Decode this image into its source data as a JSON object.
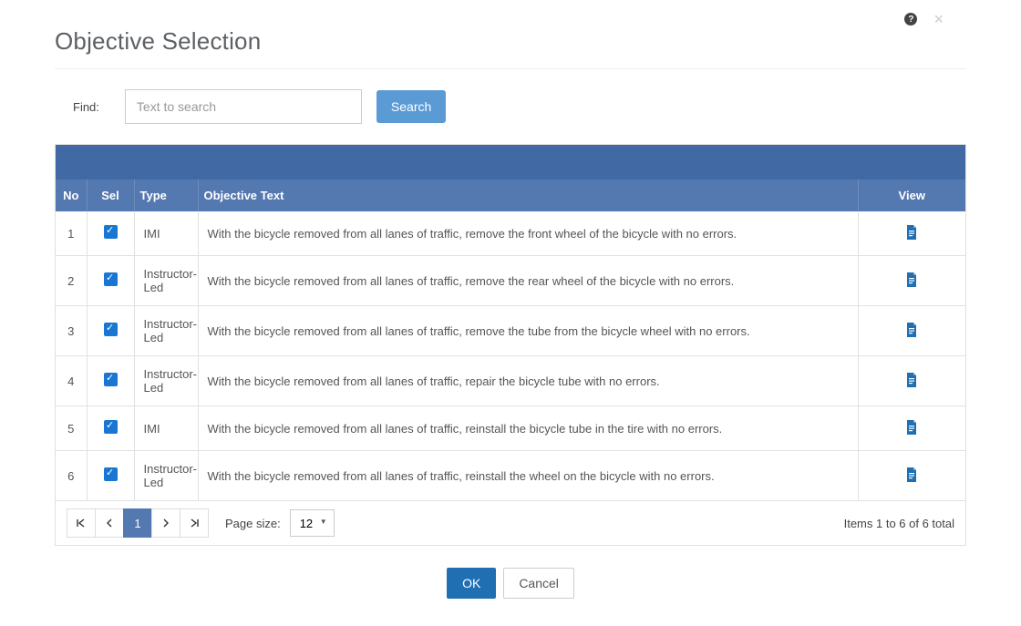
{
  "dialog": {
    "title": "Objective Selection"
  },
  "search": {
    "label": "Find:",
    "placeholder": "Text to search",
    "button": "Search"
  },
  "table": {
    "headers": {
      "no": "No",
      "sel": "Sel",
      "type": "Type",
      "objective": "Objective Text",
      "view": "View"
    },
    "rows": [
      {
        "no": "1",
        "checked": true,
        "type": "IMI",
        "text": "With the bicycle removed from all lanes of traffic, remove the front wheel of the bicycle with no errors."
      },
      {
        "no": "2",
        "checked": true,
        "type": "Instructor-Led",
        "text": "With the bicycle removed from all lanes of traffic, remove the rear wheel of the bicycle with no errors."
      },
      {
        "no": "3",
        "checked": true,
        "type": "Instructor-Led",
        "text": "With the bicycle removed from all lanes of traffic, remove the tube from the bicycle wheel with no errors."
      },
      {
        "no": "4",
        "checked": true,
        "type": "Instructor-Led",
        "text": "With the bicycle removed from all lanes of traffic, repair the bicycle tube with no errors."
      },
      {
        "no": "5",
        "checked": true,
        "type": "IMI",
        "text": "With the bicycle removed from all lanes of traffic, reinstall the bicycle tube in the tire with no errors."
      },
      {
        "no": "6",
        "checked": true,
        "type": "Instructor-Led",
        "text": "With the bicycle removed from all lanes of traffic, reinstall the wheel on the bicycle with no errors."
      }
    ]
  },
  "pager": {
    "current": "1",
    "page_size_label": "Page size:",
    "page_size_value": "12",
    "info": "Items 1 to 6 of 6 total"
  },
  "buttons": {
    "ok": "OK",
    "cancel": "Cancel"
  },
  "colors": {
    "header_blue": "#5478b0",
    "bar_blue": "#4169a4",
    "search_blue": "#5b9bd5",
    "ok_blue": "#1f6fb2",
    "icon_blue": "#1f6fb2"
  }
}
